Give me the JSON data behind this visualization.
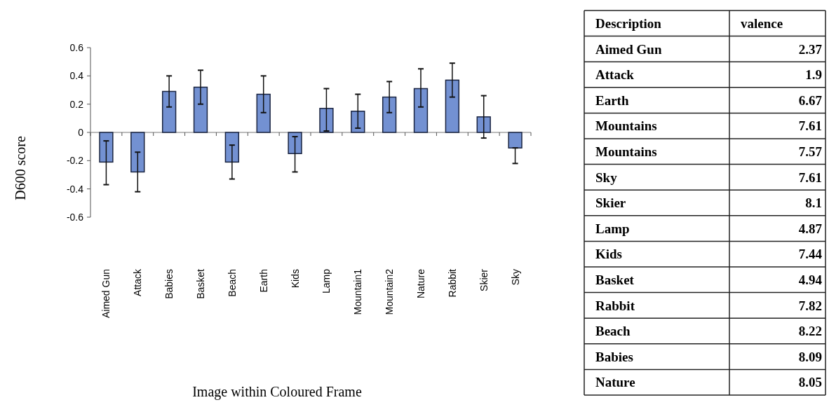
{
  "chart_data": [
    {
      "type": "bar",
      "xlabel": "Image within Coloured Frame",
      "ylabel": "D600 score",
      "categories": [
        "Aimed Gun",
        "Attack",
        "Babies",
        "Basket",
        "Beach",
        "Earth",
        "Kids",
        "Lamp",
        "Mountain1",
        "Mountain2",
        "Nature",
        "Rabbit",
        "Skier",
        "Sky"
      ],
      "values": [
        -0.21,
        -0.28,
        0.29,
        0.32,
        -0.21,
        0.27,
        -0.15,
        0.17,
        0.15,
        0.25,
        0.31,
        0.37,
        0.11,
        -0.11
      ],
      "errors": [
        [
          -0.37,
          -0.06
        ],
        [
          -0.42,
          -0.14
        ],
        [
          0.18,
          0.4
        ],
        [
          0.2,
          0.44
        ],
        [
          -0.33,
          -0.09
        ],
        [
          0.14,
          0.4
        ],
        [
          -0.28,
          -0.03
        ],
        [
          0.01,
          0.31
        ],
        [
          0.03,
          0.27
        ],
        [
          0.14,
          0.36
        ],
        [
          0.18,
          0.45
        ],
        [
          0.25,
          0.49
        ],
        [
          -0.04,
          0.26
        ],
        [
          -0.22,
          -0.11
        ]
      ],
      "color": "#7391d2",
      "ylim": [
        -0.6,
        0.6
      ],
      "yticks": [
        -0.6,
        -0.4,
        -0.2,
        0,
        0.2,
        0.4,
        0.6
      ]
    },
    {
      "type": "other",
      "xlabel": "Description",
      "ylabel": "valence",
      "categories": [
        "Aimed Gun",
        "Attack",
        "Earth",
        "Mountains",
        "Mountains",
        "Sky",
        "Skier",
        "Lamp",
        "Kids",
        "Basket",
        "Rabbit",
        "Beach",
        "Babies",
        "Nature"
      ],
      "values": [
        2.37,
        1.9,
        6.67,
        7.61,
        7.57,
        7.61,
        8.1,
        4.87,
        7.44,
        4.94,
        7.82,
        8.22,
        8.09,
        8.05
      ],
      "data_labels": true
    }
  ]
}
